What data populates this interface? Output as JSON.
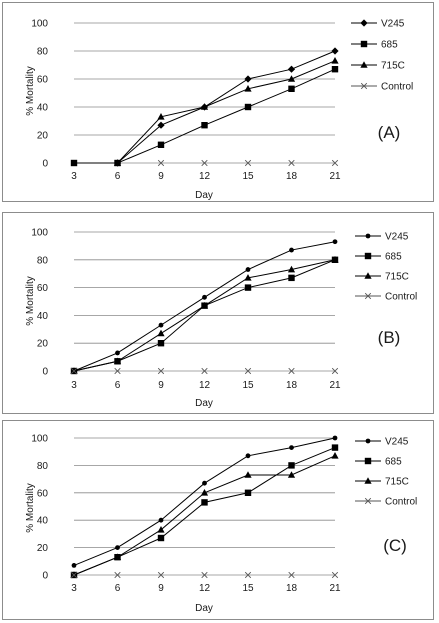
{
  "chart_data": [
    {
      "type": "line",
      "panel_label": "(A)",
      "xlabel": "Day",
      "ylabel": "% Mortality",
      "x": [
        3,
        6,
        9,
        12,
        15,
        18,
        21
      ],
      "categories": [
        "3",
        "6",
        "9",
        "12",
        "15",
        "18",
        "21"
      ],
      "ylim": [
        0,
        100
      ],
      "yticks": [
        "0",
        "20",
        "40",
        "60",
        "80",
        "100"
      ],
      "grid": "horizontal",
      "legend": "right",
      "series": [
        {
          "name": "V245",
          "marker": "diamond",
          "values": [
            null,
            0,
            27,
            40,
            60,
            67,
            80
          ]
        },
        {
          "name": "685",
          "marker": "square",
          "values": [
            0,
            0,
            13,
            27,
            40,
            53,
            67
          ]
        },
        {
          "name": "715C",
          "marker": "triangle",
          "values": [
            null,
            0,
            33,
            40,
            53,
            60,
            73
          ]
        },
        {
          "name": "Control",
          "marker": "x",
          "values": [
            null,
            null,
            0,
            0,
            0,
            0,
            0
          ]
        }
      ]
    },
    {
      "type": "line",
      "panel_label": "(B)",
      "xlabel": "Day",
      "ylabel": "% Mortality",
      "x": [
        3,
        6,
        9,
        12,
        15,
        18,
        21
      ],
      "categories": [
        "3",
        "6",
        "9",
        "12",
        "15",
        "18",
        "21"
      ],
      "ylim": [
        0,
        100
      ],
      "yticks": [
        "0",
        "20",
        "40",
        "60",
        "80",
        "100"
      ],
      "grid": "horizontal",
      "legend": "right",
      "series": [
        {
          "name": "V245",
          "marker": "circle",
          "values": [
            0,
            13,
            33,
            53,
            73,
            87,
            93
          ]
        },
        {
          "name": "685",
          "marker": "square",
          "values": [
            0,
            7,
            20,
            47,
            60,
            67,
            80
          ]
        },
        {
          "name": "715C",
          "marker": "triangle",
          "values": [
            0,
            7,
            27,
            47,
            67,
            73,
            80
          ]
        },
        {
          "name": "Control",
          "marker": "x",
          "values": [
            0,
            0,
            0,
            0,
            0,
            0,
            0
          ]
        }
      ]
    },
    {
      "type": "line",
      "panel_label": "(C)",
      "xlabel": "Day",
      "ylabel": "% Mortality",
      "x": [
        3,
        6,
        9,
        12,
        15,
        18,
        21
      ],
      "categories": [
        "3",
        "6",
        "9",
        "12",
        "15",
        "18",
        "21"
      ],
      "ylim": [
        0,
        100
      ],
      "yticks": [
        "0",
        "20",
        "40",
        "60",
        "80",
        "100"
      ],
      "grid": "horizontal",
      "legend": "right",
      "series": [
        {
          "name": "V245",
          "marker": "circle",
          "values": [
            7,
            20,
            40,
            67,
            87,
            93,
            100
          ]
        },
        {
          "name": "685",
          "marker": "square",
          "values": [
            0,
            13,
            27,
            53,
            60,
            80,
            93
          ]
        },
        {
          "name": "715C",
          "marker": "triangle",
          "values": [
            0,
            13,
            33,
            60,
            73,
            73,
            87
          ]
        },
        {
          "name": "Control",
          "marker": "x",
          "values": [
            0,
            0,
            0,
            0,
            0,
            0,
            0
          ]
        }
      ]
    }
  ]
}
